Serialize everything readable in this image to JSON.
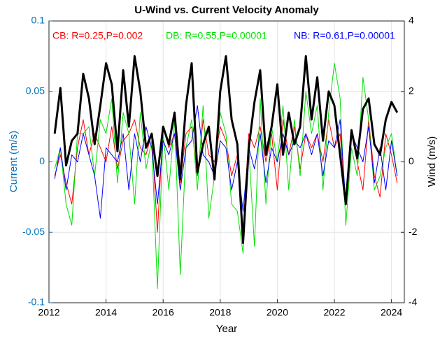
{
  "chart_data": {
    "type": "line",
    "title": "U-Wind vs. Current Velocity Anomaly",
    "xlabel": "Year",
    "ylabel": "Current (m/s)",
    "y2label": "Wind (m/s)",
    "ylabel_color": "#0072bd",
    "annotations": [
      {
        "text": "CB: R=0.25,P=0.002",
        "color": "#ff0000"
      },
      {
        "text": "DB: R=0.55,P=0.00001",
        "color": "#00e000"
      },
      {
        "text": "NB: R=0.61,P=0.00001",
        "color": "#0000ff"
      }
    ],
    "x": [
      2012.2,
      2012.4,
      2012.6,
      2012.8,
      2013.0,
      2013.2,
      2013.4,
      2013.6,
      2013.8,
      2014.0,
      2014.2,
      2014.4,
      2014.6,
      2014.8,
      2015.0,
      2015.2,
      2015.4,
      2015.6,
      2015.8,
      2016.0,
      2016.2,
      2016.4,
      2016.6,
      2016.8,
      2017.0,
      2017.2,
      2017.4,
      2017.6,
      2017.8,
      2018.0,
      2018.2,
      2018.4,
      2018.6,
      2018.8,
      2019.0,
      2019.2,
      2019.4,
      2019.6,
      2019.8,
      2020.0,
      2020.2,
      2020.4,
      2020.6,
      2020.8,
      2021.0,
      2021.2,
      2021.4,
      2021.6,
      2021.8,
      2022.0,
      2022.2,
      2022.4,
      2022.6,
      2022.8,
      2023.0,
      2023.2,
      2023.4,
      2023.6,
      2023.8,
      2024.0,
      2024.2
    ],
    "series": [
      {
        "color": "#ff0000",
        "width": 1,
        "values": [
          -0.01,
          0.005,
          -0.015,
          -0.03,
          0.01,
          0.03,
          0.005,
          0.02,
          0.01,
          0.0,
          0.025,
          -0.005,
          0.015,
          0.02,
          0.03,
          0.01,
          0.005,
          0.02,
          -0.05,
          0.025,
          0.01,
          0.02,
          -0.015,
          0.02,
          0.025,
          -0.01,
          0.03,
          0.005,
          0.0,
          0.025,
          0.015,
          -0.01,
          0.005,
          -0.05,
          0.02,
          0.01,
          0.025,
          0.0,
          0.02,
          -0.02,
          0.03,
          0.005,
          0.025,
          -0.005,
          0.02,
          0.01,
          0.02,
          0.0,
          0.03,
          0.01,
          0.02,
          -0.03,
          0.02,
          0.0,
          -0.02,
          0.03,
          -0.01,
          -0.025,
          0.02,
          0.005,
          -0.015
        ]
      },
      {
        "color": "#00e000",
        "width": 1,
        "values": [
          -0.005,
          0.01,
          -0.03,
          -0.045,
          0.02,
          0.02,
          0.025,
          -0.01,
          0.03,
          0.02,
          0.045,
          -0.015,
          0.035,
          0.02,
          -0.03,
          0.035,
          -0.005,
          0.015,
          -0.09,
          0.02,
          -0.02,
          0.03,
          -0.08,
          0.01,
          0.03,
          -0.02,
          0.04,
          -0.04,
          -0.01,
          0.035,
          0.02,
          -0.03,
          -0.035,
          -0.065,
          0.01,
          -0.06,
          0.045,
          -0.03,
          0.025,
          0.0,
          0.04,
          -0.02,
          0.03,
          -0.01,
          0.05,
          0.02,
          0.04,
          -0.02,
          0.035,
          0.07,
          0.045,
          -0.045,
          0.01,
          -0.01,
          0.06,
          0.03,
          -0.02,
          -0.01,
          0.01,
          0.02,
          -0.01
        ]
      },
      {
        "color": "#0000ff",
        "width": 1,
        "values": [
          -0.012,
          0.01,
          -0.02,
          0.005,
          0.0,
          0.02,
          0.005,
          -0.01,
          -0.04,
          0.01,
          0.005,
          0.0,
          0.02,
          -0.02,
          0.02,
          0.0,
          0.025,
          0.01,
          -0.03,
          0.015,
          0.005,
          0.02,
          -0.02,
          0.01,
          0.015,
          0.04,
          0.005,
          0.0,
          -0.01,
          0.015,
          0.01,
          -0.02,
          0.0,
          -0.035,
          0.01,
          -0.005,
          0.02,
          -0.015,
          0.01,
          0.0,
          0.02,
          0.005,
          0.015,
          0.01,
          0.02,
          0.005,
          0.02,
          -0.01,
          0.015,
          0.01,
          0.03,
          -0.03,
          0.02,
          0.01,
          0.0,
          0.025,
          -0.015,
          0.01,
          -0.02,
          0.015,
          -0.01
        ]
      },
      {
        "color": "#000000",
        "width": 3,
        "axis": "y2",
        "values": [
          0.8,
          2.1,
          -0.1,
          0.6,
          0.8,
          2.5,
          1.8,
          0.5,
          1.6,
          2.8,
          2.2,
          0.3,
          2.6,
          1.0,
          3.0,
          2.0,
          0.4,
          0.8,
          -0.4,
          1.0,
          0.5,
          1.4,
          -0.5,
          1.6,
          2.8,
          -0.3,
          0.5,
          1.0,
          -0.5,
          2.0,
          3.0,
          1.2,
          0.5,
          -2.3,
          0.4,
          1.7,
          2.6,
          0.2,
          1.0,
          2.2,
          0.2,
          1.4,
          0.5,
          1.0,
          3.0,
          1.2,
          2.4,
          0.6,
          2.0,
          1.6,
          0.2,
          -1.2,
          0.9,
          0.1,
          1.5,
          1.8,
          0.5,
          0.2,
          1.2,
          1.7,
          1.4
        ]
      }
    ],
    "xlim": [
      2012,
      2024.45
    ],
    "xticks": [
      2012,
      2014,
      2016,
      2018,
      2020,
      2022,
      2024
    ],
    "ylim": [
      -0.1,
      0.1
    ],
    "yticks": [
      -0.1,
      -0.05,
      0,
      0.05,
      0.1
    ],
    "y2lim": [
      -4,
      4
    ],
    "y2ticks": [
      -4,
      -2,
      0,
      2,
      4
    ],
    "grid": true
  }
}
